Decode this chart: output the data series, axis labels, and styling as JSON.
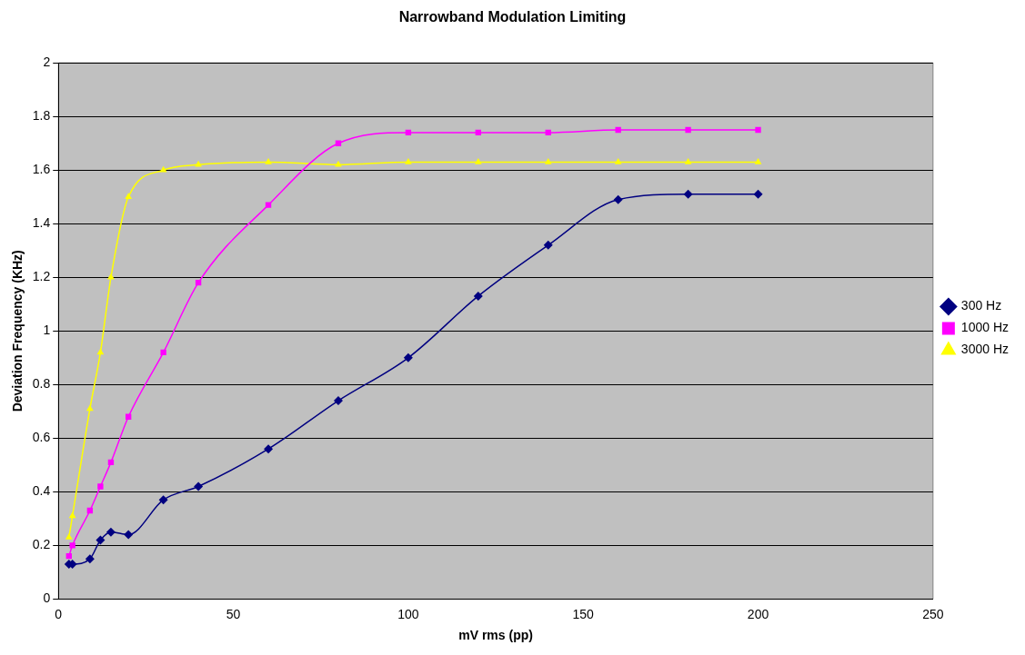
{
  "chart_data": {
    "type": "line",
    "title": "Narrowband Modulation Limiting",
    "xlabel": "mV rms (pp)",
    "ylabel": "Deviation Frequency (KHz)",
    "x": [
      3,
      4,
      9,
      12,
      15,
      20,
      30,
      40,
      60,
      80,
      100,
      120,
      140,
      160,
      180,
      200
    ],
    "series": [
      {
        "name": "300 Hz",
        "color": "#000080",
        "marker": "diamond",
        "values": [
          0.13,
          0.13,
          0.15,
          0.22,
          0.25,
          0.24,
          0.37,
          0.42,
          0.56,
          0.74,
          0.9,
          1.13,
          1.32,
          1.49,
          1.51,
          1.51
        ]
      },
      {
        "name": "1000 Hz",
        "color": "#ff00ff",
        "marker": "square",
        "values": [
          0.16,
          0.2,
          0.33,
          0.42,
          0.51,
          0.68,
          0.92,
          1.18,
          1.47,
          1.7,
          1.74,
          1.74,
          1.74,
          1.75,
          1.75,
          1.75
        ]
      },
      {
        "name": "3000 Hz",
        "color": "#ffff00",
        "marker": "triangle",
        "values": [
          0.23,
          0.31,
          0.71,
          0.92,
          1.2,
          1.5,
          1.6,
          1.62,
          1.63,
          1.62,
          1.63,
          1.63,
          1.63,
          1.63,
          1.63,
          1.63
        ]
      }
    ],
    "xlim": [
      0,
      250
    ],
    "xticks": [
      0,
      50,
      100,
      150,
      200,
      250
    ],
    "ylim": [
      0,
      2
    ],
    "yticks": [
      0,
      0.2,
      0.4,
      0.6,
      0.8,
      1,
      1.2,
      1.4,
      1.6,
      1.8,
      2
    ],
    "grid": "y",
    "legend": "right",
    "line_style": "solid"
  }
}
